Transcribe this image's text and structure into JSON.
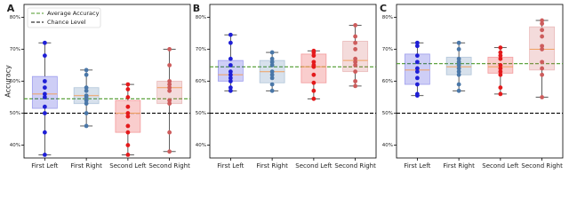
{
  "chart_data": [
    {
      "type": "box",
      "panel_label": "A",
      "ylabel": "Accuracy",
      "legend": "upper left",
      "categories": [
        "First Left",
        "First Right",
        "Second Left",
        "Second Right"
      ],
      "ylim": [
        36,
        84
      ],
      "yticks": [
        {
          "value": 40,
          "label": "40%"
        },
        {
          "value": 50,
          "label": "50%"
        },
        {
          "value": 60,
          "label": "60%"
        },
        {
          "value": 70,
          "label": "70%"
        },
        {
          "value": 80,
          "label": "80%"
        }
      ],
      "reference_lines": [
        {
          "name": "Average Accuracy",
          "value": 54.5,
          "color": "#4c9a2a"
        },
        {
          "name": "Chance Level",
          "value": 50,
          "color": "#000000"
        }
      ],
      "boxes": [
        {
          "color": "#1f1fd6",
          "whislo": 37,
          "q1": 51.5,
          "med": 56,
          "q3": 61.5,
          "whishi": 72,
          "points": [
            72,
            68,
            60,
            58,
            56,
            55,
            52,
            50,
            44,
            37
          ]
        },
        {
          "color": "#4a77a8",
          "whislo": 46,
          "q1": 53,
          "med": 55.5,
          "q3": 58,
          "whishi": 63.5,
          "points": [
            63.5,
            62,
            58,
            57,
            55.5,
            55,
            54,
            53,
            50,
            46
          ]
        },
        {
          "color": "#e41a1c",
          "whislo": 37,
          "q1": 44,
          "med": 50,
          "q3": 54,
          "whishi": 59,
          "points": [
            59,
            57.5,
            55,
            52,
            50,
            49,
            46,
            44,
            40,
            37
          ]
        },
        {
          "color": "#cd5c5c",
          "whislo": 38,
          "q1": 53,
          "med": 58,
          "q3": 60,
          "whishi": 70,
          "points": [
            70,
            65,
            60,
            59,
            58,
            57,
            54,
            53,
            44,
            38
          ]
        }
      ]
    },
    {
      "type": "box",
      "panel_label": "B",
      "categories": [
        "First Left",
        "First Right",
        "Second Left",
        "Second Right"
      ],
      "ylim": [
        36,
        84
      ],
      "yticks": [
        {
          "value": 40,
          "label": "40%"
        },
        {
          "value": 50,
          "label": "50%"
        },
        {
          "value": 60,
          "label": "60%"
        },
        {
          "value": 70,
          "label": "70%"
        },
        {
          "value": 80,
          "label": "80%"
        }
      ],
      "reference_lines": [
        {
          "value": 64.5,
          "color": "#4c9a2a"
        },
        {
          "value": 50,
          "color": "#000000"
        }
      ],
      "boxes": [
        {
          "color": "#1f1fd6",
          "whislo": 57,
          "q1": 60,
          "med": 62,
          "q3": 66.5,
          "whishi": 74.5,
          "points": [
            74.5,
            72,
            67,
            65,
            63,
            62,
            61,
            60,
            58,
            57
          ]
        },
        {
          "color": "#4a77a8",
          "whislo": 57,
          "q1": 59.5,
          "med": 63,
          "q3": 66.5,
          "whishi": 69,
          "points": [
            69,
            67,
            66,
            65,
            63,
            62,
            61,
            59,
            57
          ]
        },
        {
          "color": "#e41a1c",
          "whislo": 54.5,
          "q1": 59.5,
          "med": 64.5,
          "q3": 68.5,
          "whishi": 69.5,
          "points": [
            69.5,
            69,
            68,
            66,
            65,
            64.5,
            62,
            59.5,
            57,
            54.5
          ]
        },
        {
          "color": "#cd5c5c",
          "whislo": 58.5,
          "q1": 63,
          "med": 66.5,
          "q3": 72.5,
          "whishi": 77.5,
          "points": [
            77.5,
            74,
            72,
            70,
            67,
            66,
            65,
            63,
            60,
            58.5
          ]
        }
      ]
    },
    {
      "type": "box",
      "panel_label": "C",
      "categories": [
        "First Left",
        "First Right",
        "Second Left",
        "Second Right"
      ],
      "ylim": [
        36,
        84
      ],
      "yticks": [
        {
          "value": 40,
          "label": "40%"
        },
        {
          "value": 50,
          "label": "50%"
        },
        {
          "value": 60,
          "label": "60%"
        },
        {
          "value": 70,
          "label": "70%"
        },
        {
          "value": 80,
          "label": "80%"
        }
      ],
      "reference_lines": [
        {
          "value": 65.5,
          "color": "#4c9a2a"
        },
        {
          "value": 50,
          "color": "#000000"
        }
      ],
      "boxes": [
        {
          "color": "#1f1fd6",
          "whislo": 55.5,
          "q1": 59,
          "med": 63.5,
          "q3": 68.5,
          "whishi": 72,
          "points": [
            72,
            71,
            68,
            66,
            64,
            63,
            61,
            59,
            56,
            55.5
          ]
        },
        {
          "color": "#4a77a8",
          "whislo": 57,
          "q1": 62,
          "med": 64.5,
          "q3": 67.5,
          "whishi": 72,
          "points": [
            72,
            70,
            67,
            66,
            65,
            64,
            63,
            62,
            59,
            57
          ]
        },
        {
          "color": "#e41a1c",
          "whislo": 56,
          "q1": 62.5,
          "med": 64.5,
          "q3": 67.5,
          "whishi": 70.5,
          "points": [
            70.5,
            69,
            68,
            67,
            65,
            64,
            63,
            62,
            58,
            56
          ]
        },
        {
          "color": "#cd5c5c",
          "whislo": 55,
          "q1": 63.5,
          "med": 70,
          "q3": 77,
          "whishi": 79,
          "points": [
            79,
            78,
            76,
            74,
            71,
            70,
            66,
            64,
            62,
            55
          ]
        }
      ]
    }
  ]
}
